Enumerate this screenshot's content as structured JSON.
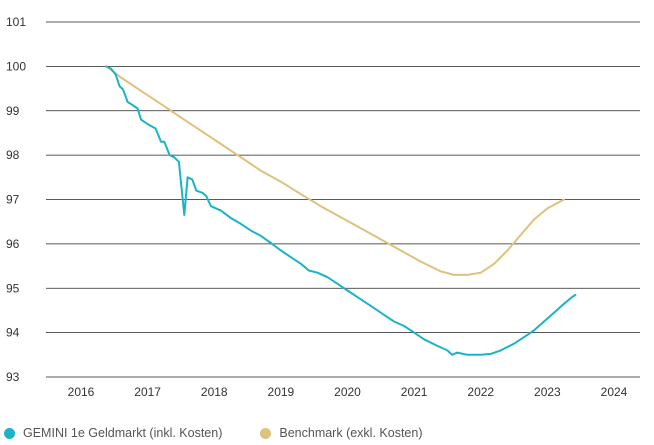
{
  "chart_data": {
    "type": "line",
    "title": "",
    "xlabel": "",
    "ylabel": "",
    "xlim": [
      2016,
      2024
    ],
    "ylim": [
      93,
      101
    ],
    "x_ticks": [
      "2016",
      "2017",
      "2018",
      "2019",
      "2020",
      "2021",
      "2022",
      "2023",
      "2024"
    ],
    "y_ticks": [
      "93",
      "94",
      "95",
      "96",
      "97",
      "98",
      "99",
      "100",
      "101"
    ],
    "grid": "horizontal",
    "legend_position": "bottom-left",
    "series": [
      {
        "name": "GEMINI 1e Geldmarkt (inkl. Kosten)",
        "color": "#1bb3c8",
        "points": [
          [
            2016.38,
            100.0
          ],
          [
            2016.45,
            99.95
          ],
          [
            2016.52,
            99.82
          ],
          [
            2016.58,
            99.55
          ],
          [
            2016.63,
            99.48
          ],
          [
            2016.7,
            99.2
          ],
          [
            2016.78,
            99.12
          ],
          [
            2016.85,
            99.05
          ],
          [
            2016.9,
            98.8
          ],
          [
            2017.0,
            98.7
          ],
          [
            2017.12,
            98.6
          ],
          [
            2017.2,
            98.3
          ],
          [
            2017.25,
            98.3
          ],
          [
            2017.33,
            98.0
          ],
          [
            2017.4,
            97.95
          ],
          [
            2017.47,
            97.85
          ],
          [
            2017.55,
            96.65
          ],
          [
            2017.6,
            97.5
          ],
          [
            2017.67,
            97.45
          ],
          [
            2017.73,
            97.2
          ],
          [
            2017.82,
            97.15
          ],
          [
            2017.88,
            97.08
          ],
          [
            2017.95,
            96.85
          ],
          [
            2018.1,
            96.75
          ],
          [
            2018.25,
            96.58
          ],
          [
            2018.4,
            96.45
          ],
          [
            2018.55,
            96.3
          ],
          [
            2018.7,
            96.18
          ],
          [
            2018.85,
            96.02
          ],
          [
            2019.0,
            95.85
          ],
          [
            2019.15,
            95.7
          ],
          [
            2019.3,
            95.55
          ],
          [
            2019.42,
            95.4
          ],
          [
            2019.55,
            95.35
          ],
          [
            2019.7,
            95.25
          ],
          [
            2019.85,
            95.1
          ],
          [
            2020.0,
            94.95
          ],
          [
            2020.2,
            94.75
          ],
          [
            2020.4,
            94.55
          ],
          [
            2020.55,
            94.4
          ],
          [
            2020.7,
            94.25
          ],
          [
            2020.85,
            94.15
          ],
          [
            2021.0,
            94.0
          ],
          [
            2021.15,
            93.85
          ],
          [
            2021.35,
            93.7
          ],
          [
            2021.5,
            93.6
          ],
          [
            2021.57,
            93.5
          ],
          [
            2021.65,
            93.55
          ],
          [
            2021.8,
            93.5
          ],
          [
            2022.0,
            93.5
          ],
          [
            2022.15,
            93.52
          ],
          [
            2022.3,
            93.6
          ],
          [
            2022.5,
            93.75
          ],
          [
            2022.65,
            93.9
          ],
          [
            2022.8,
            94.05
          ],
          [
            2022.95,
            94.25
          ],
          [
            2023.1,
            94.45
          ],
          [
            2023.25,
            94.65
          ],
          [
            2023.37,
            94.8
          ],
          [
            2023.42,
            94.85
          ]
        ]
      },
      {
        "name": "Benchmark (exkl. Kosten)",
        "color": "#dcc27c",
        "points": [
          [
            2016.38,
            100.0
          ],
          [
            2016.6,
            99.75
          ],
          [
            2016.9,
            99.45
          ],
          [
            2017.2,
            99.15
          ],
          [
            2017.5,
            98.85
          ],
          [
            2017.8,
            98.55
          ],
          [
            2018.1,
            98.25
          ],
          [
            2018.4,
            97.95
          ],
          [
            2018.7,
            97.65
          ],
          [
            2019.0,
            97.4
          ],
          [
            2019.3,
            97.12
          ],
          [
            2019.6,
            96.85
          ],
          [
            2019.9,
            96.6
          ],
          [
            2020.2,
            96.35
          ],
          [
            2020.5,
            96.1
          ],
          [
            2020.8,
            95.85
          ],
          [
            2021.1,
            95.6
          ],
          [
            2021.4,
            95.38
          ],
          [
            2021.6,
            95.3
          ],
          [
            2021.8,
            95.3
          ],
          [
            2022.0,
            95.35
          ],
          [
            2022.2,
            95.55
          ],
          [
            2022.4,
            95.85
          ],
          [
            2022.6,
            96.2
          ],
          [
            2022.8,
            96.55
          ],
          [
            2023.0,
            96.8
          ],
          [
            2023.15,
            96.92
          ],
          [
            2023.25,
            97.0
          ]
        ]
      }
    ]
  }
}
